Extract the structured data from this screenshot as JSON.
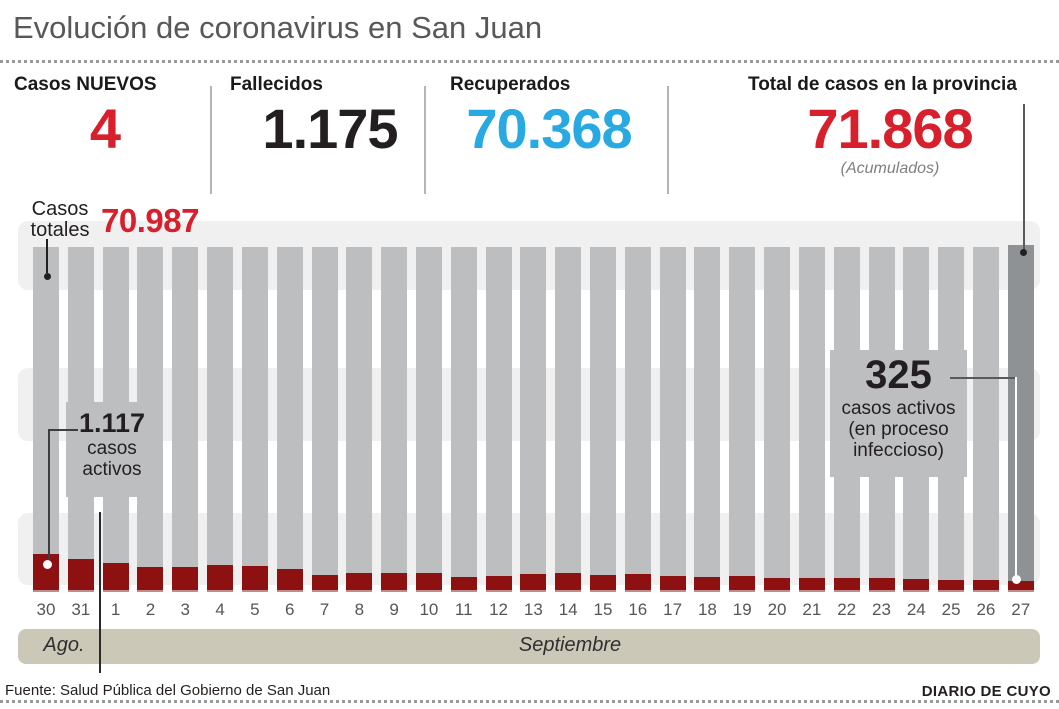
{
  "title": "Evolución de coronavirus en San Juan",
  "colors": {
    "accent_red": "#d7202b",
    "dark_red_bar": "#8e1112",
    "blue": "#29a9e1",
    "gray_bar": "#bdbec0",
    "highlight_last_bar": "#8f9295",
    "band": "#f0f0f1",
    "month_band": "#cbc8b8",
    "title_gray": "#57585a"
  },
  "stats": [
    {
      "label": "Casos NUEVOS",
      "value": "4",
      "color": "#d7202b"
    },
    {
      "label": "Fallecidos",
      "value": "1.175",
      "color": "#231f20"
    },
    {
      "label": "Recuperados",
      "value": "70.368",
      "color": "#29a9e1"
    },
    {
      "label": "Total de casos en la provincia",
      "value": "71.868",
      "color": "#d7202b",
      "subnote": "(Acumulados)"
    }
  ],
  "annotations": {
    "totales": {
      "line1": "Casos",
      "line2": "totales",
      "value": "70.987"
    },
    "activos_first": {
      "value": "1.117",
      "line2": "casos",
      "line3": "activos"
    },
    "activos_last": {
      "value": "325",
      "line2": "casos activos",
      "line3": "(en proceso",
      "line4": "infeccioso)"
    }
  },
  "months": {
    "august": "Ago.",
    "september": "Septiembre"
  },
  "footer": {
    "source": "Fuente: Salud Pública del Gobierno de San Juan",
    "credit": "DIARIO DE CUYO"
  },
  "chart_data": {
    "type": "bar",
    "categories": [
      "30",
      "31",
      "1",
      "2",
      "3",
      "4",
      "5",
      "6",
      "7",
      "8",
      "9",
      "10",
      "11",
      "12",
      "13",
      "14",
      "15",
      "16",
      "17",
      "18",
      "19",
      "20",
      "21",
      "22",
      "23",
      "24",
      "25",
      "26",
      "27"
    ],
    "month_groups": [
      {
        "label": "Ago.",
        "days": [
          "30",
          "31"
        ]
      },
      {
        "label": "Septiembre",
        "days": [
          "1",
          "2",
          "3",
          "4",
          "5",
          "6",
          "7",
          "8",
          "9",
          "10",
          "11",
          "12",
          "13",
          "14",
          "15",
          "16",
          "17",
          "18",
          "19",
          "20",
          "21",
          "22",
          "23",
          "24",
          "25",
          "26",
          "27"
        ]
      }
    ],
    "series": [
      {
        "name": "Casos totales (acumulados)",
        "color": "#bdbec0",
        "first_value": 70987,
        "last_value": 71868,
        "note": "barras truncadas, altura casi constante; última barra resaltada en gris oscuro"
      },
      {
        "name": "Casos activos (en proceso infeccioso)",
        "color": "#8e1112",
        "values": [
          1117,
          970,
          855,
          735,
          735,
          795,
          765,
          675,
          500,
          560,
          560,
          560,
          440,
          470,
          530,
          560,
          500,
          530,
          470,
          440,
          470,
          410,
          410,
          410,
          410,
          380,
          355,
          355,
          325
        ],
        "known_values": {
          "30 Ago": 1117,
          "27 Sep": 325
        },
        "estimated": true
      }
    ],
    "highlight_last_bar_color": "#8f9295",
    "legend_position": "none",
    "grid": "horizontal alternating bands"
  }
}
